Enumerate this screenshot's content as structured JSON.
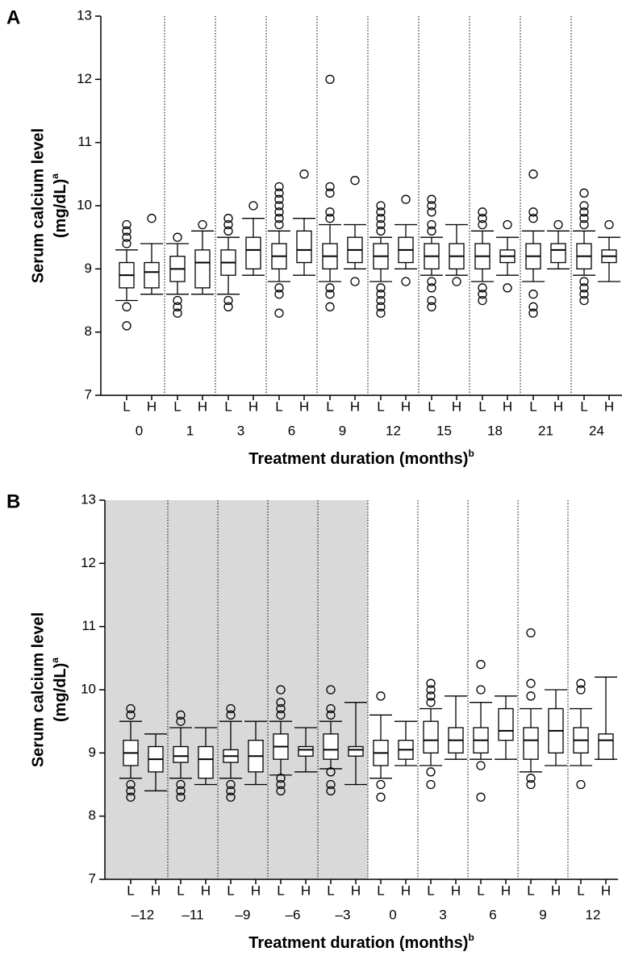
{
  "chart_data": [
    {
      "type": "box",
      "panel_label": "A",
      "y_label": [
        "Serum calcium level",
        "(mg/dL)"
      ],
      "y_label_superscript": "a",
      "x_label": "Treatment duration (months)",
      "x_label_superscript": "b",
      "ylim": [
        7,
        13
      ],
      "yticks": [
        7,
        8,
        9,
        10,
        11,
        12,
        13
      ],
      "categories": [
        "0",
        "1",
        "3",
        "6",
        "9",
        "12",
        "15",
        "18",
        "21",
        "24"
      ],
      "boxes": [
        [
          {
            "label": "L",
            "min": 8.5,
            "q1": 8.7,
            "median": 8.9,
            "q3": 9.1,
            "max": 9.3,
            "outliers": [
              9.4,
              9.5,
              9.6,
              9.7,
              8.4,
              8.1
            ]
          },
          {
            "label": "H",
            "min": 8.6,
            "q1": 8.7,
            "median": 8.95,
            "q3": 9.1,
            "max": 9.4,
            "outliers": [
              9.8
            ]
          }
        ],
        [
          {
            "label": "L",
            "min": 8.6,
            "q1": 8.8,
            "median": 9.0,
            "q3": 9.2,
            "max": 9.4,
            "outliers": [
              9.5,
              8.5,
              8.4,
              8.3
            ]
          },
          {
            "label": "H",
            "min": 8.6,
            "q1": 8.7,
            "median": 9.1,
            "q3": 9.3,
            "max": 9.6,
            "outliers": [
              9.7
            ]
          }
        ],
        [
          {
            "label": "L",
            "min": 8.6,
            "q1": 8.9,
            "median": 9.1,
            "q3": 9.3,
            "max": 9.5,
            "outliers": [
              9.6,
              9.7,
              9.8,
              8.5,
              8.4
            ]
          },
          {
            "label": "H",
            "min": 8.9,
            "q1": 9.0,
            "median": 9.3,
            "q3": 9.5,
            "max": 9.8,
            "outliers": [
              10.0
            ]
          }
        ],
        [
          {
            "label": "L",
            "min": 8.8,
            "q1": 9.0,
            "median": 9.2,
            "q3": 9.4,
            "max": 9.6,
            "outliers": [
              9.7,
              9.8,
              9.9,
              10.0,
              10.1,
              10.2,
              10.3,
              8.7,
              8.6,
              8.3
            ]
          },
          {
            "label": "H",
            "min": 8.9,
            "q1": 9.1,
            "median": 9.3,
            "q3": 9.6,
            "max": 9.8,
            "outliers": [
              10.5
            ]
          }
        ],
        [
          {
            "label": "L",
            "min": 8.8,
            "q1": 9.0,
            "median": 9.2,
            "q3": 9.4,
            "max": 9.7,
            "outliers": [
              9.8,
              9.9,
              10.2,
              10.3,
              12.0,
              8.7,
              8.6,
              8.4
            ]
          },
          {
            "label": "H",
            "min": 9.0,
            "q1": 9.1,
            "median": 9.3,
            "q3": 9.5,
            "max": 9.7,
            "outliers": [
              10.4,
              8.8
            ]
          }
        ],
        [
          {
            "label": "L",
            "min": 8.8,
            "q1": 9.0,
            "median": 9.2,
            "q3": 9.4,
            "max": 9.5,
            "outliers": [
              9.6,
              9.7,
              9.8,
              9.9,
              10.0,
              8.7,
              8.6,
              8.5,
              8.4,
              8.3
            ]
          },
          {
            "label": "H",
            "min": 9.0,
            "q1": 9.1,
            "median": 9.3,
            "q3": 9.5,
            "max": 9.7,
            "outliers": [
              10.1,
              8.8
            ]
          }
        ],
        [
          {
            "label": "L",
            "min": 8.9,
            "q1": 9.0,
            "median": 9.2,
            "q3": 9.4,
            "max": 9.5,
            "outliers": [
              9.6,
              9.7,
              9.9,
              10.0,
              10.1,
              8.8,
              8.7,
              8.5,
              8.4
            ]
          },
          {
            "label": "H",
            "min": 8.9,
            "q1": 9.0,
            "median": 9.2,
            "q3": 9.4,
            "max": 9.7,
            "outliers": [
              8.8
            ]
          }
        ],
        [
          {
            "label": "L",
            "min": 8.8,
            "q1": 9.0,
            "median": 9.2,
            "q3": 9.4,
            "max": 9.6,
            "outliers": [
              9.7,
              9.8,
              9.9,
              8.7,
              8.6,
              8.5
            ]
          },
          {
            "label": "H",
            "min": 8.9,
            "q1": 9.1,
            "median": 9.2,
            "q3": 9.3,
            "max": 9.5,
            "outliers": [
              9.7,
              8.7
            ]
          }
        ],
        [
          {
            "label": "L",
            "min": 8.8,
            "q1": 9.0,
            "median": 9.2,
            "q3": 9.4,
            "max": 9.6,
            "outliers": [
              9.8,
              9.9,
              10.5,
              8.6,
              8.4,
              8.3
            ]
          },
          {
            "label": "H",
            "min": 9.0,
            "q1": 9.1,
            "median": 9.3,
            "q3": 9.4,
            "max": 9.6,
            "outliers": [
              9.7
            ]
          }
        ],
        [
          {
            "label": "L",
            "min": 8.9,
            "q1": 9.0,
            "median": 9.2,
            "q3": 9.4,
            "max": 9.6,
            "outliers": [
              9.7,
              9.8,
              9.9,
              10.0,
              10.2,
              8.8,
              8.7,
              8.6,
              8.5
            ]
          },
          {
            "label": "H",
            "min": 8.8,
            "q1": 9.1,
            "median": 9.2,
            "q3": 9.3,
            "max": 9.5,
            "outliers": [
              9.7
            ]
          }
        ]
      ]
    },
    {
      "type": "box",
      "panel_label": "B",
      "y_label": [
        "Serum calcium level",
        "(mg/dL)"
      ],
      "y_label_superscript": "a",
      "x_label": "Treatment duration (months)",
      "x_label_superscript": "b",
      "ylim": [
        7,
        13
      ],
      "yticks": [
        7,
        8,
        9,
        10,
        11,
        12,
        13
      ],
      "categories": [
        "–12",
        "–11",
        "–9",
        "–6",
        "–3",
        "0",
        "3",
        "6",
        "9",
        "12"
      ],
      "shaded": [
        true,
        true,
        true,
        true,
        true,
        false,
        false,
        false,
        false,
        false
      ],
      "shade_color": "#d9d9d9",
      "boxes": [
        [
          {
            "label": "L",
            "min": 8.6,
            "q1": 8.8,
            "median": 9.0,
            "q3": 9.2,
            "max": 9.5,
            "outliers": [
              9.6,
              9.7,
              8.5,
              8.4,
              8.3
            ]
          },
          {
            "label": "H",
            "min": 8.4,
            "q1": 8.7,
            "median": 8.9,
            "q3": 9.1,
            "max": 9.3,
            "outliers": []
          }
        ],
        [
          {
            "label": "L",
            "min": 8.6,
            "q1": 8.85,
            "median": 8.95,
            "q3": 9.1,
            "max": 9.4,
            "outliers": [
              9.5,
              9.6,
              8.5,
              8.4,
              8.3
            ]
          },
          {
            "label": "H",
            "min": 8.5,
            "q1": 8.6,
            "median": 8.9,
            "q3": 9.1,
            "max": 9.4,
            "outliers": []
          }
        ],
        [
          {
            "label": "L",
            "min": 8.6,
            "q1": 8.85,
            "median": 8.95,
            "q3": 9.05,
            "max": 9.5,
            "outliers": [
              9.6,
              9.7,
              8.5,
              8.4,
              8.3
            ]
          },
          {
            "label": "H",
            "min": 8.5,
            "q1": 8.7,
            "median": 8.95,
            "q3": 9.2,
            "max": 9.5,
            "outliers": []
          }
        ],
        [
          {
            "label": "L",
            "min": 8.65,
            "q1": 8.9,
            "median": 9.1,
            "q3": 9.3,
            "max": 9.5,
            "outliers": [
              9.6,
              9.7,
              9.8,
              10.0,
              8.6,
              8.5,
              8.4
            ]
          },
          {
            "label": "H",
            "min": 8.7,
            "q1": 8.95,
            "median": 9.05,
            "q3": 9.1,
            "max": 9.4,
            "outliers": []
          }
        ],
        [
          {
            "label": "L",
            "min": 8.75,
            "q1": 8.9,
            "median": 9.05,
            "q3": 9.3,
            "max": 9.5,
            "outliers": [
              9.6,
              9.7,
              10.0,
              8.7,
              8.5,
              8.4
            ]
          },
          {
            "label": "H",
            "min": 8.5,
            "q1": 8.95,
            "median": 9.05,
            "q3": 9.1,
            "max": 9.8,
            "outliers": []
          }
        ],
        [
          {
            "label": "L",
            "min": 8.6,
            "q1": 8.8,
            "median": 9.0,
            "q3": 9.2,
            "max": 9.6,
            "outliers": [
              9.9,
              8.5,
              8.3
            ]
          },
          {
            "label": "H",
            "min": 8.8,
            "q1": 8.9,
            "median": 9.05,
            "q3": 9.2,
            "max": 9.5,
            "outliers": []
          }
        ],
        [
          {
            "label": "L",
            "min": 8.8,
            "q1": 9.0,
            "median": 9.2,
            "q3": 9.5,
            "max": 9.7,
            "outliers": [
              9.8,
              9.9,
              10.0,
              10.1,
              8.7,
              8.5
            ]
          },
          {
            "label": "H",
            "min": 8.9,
            "q1": 9.0,
            "median": 9.2,
            "q3": 9.4,
            "max": 9.9,
            "outliers": []
          }
        ],
        [
          {
            "label": "L",
            "min": 8.9,
            "q1": 9.0,
            "median": 9.2,
            "q3": 9.4,
            "max": 9.8,
            "outliers": [
              10.0,
              10.4,
              8.8,
              8.3
            ]
          },
          {
            "label": "H",
            "min": 8.9,
            "q1": 9.2,
            "median": 9.35,
            "q3": 9.7,
            "max": 9.9,
            "outliers": []
          }
        ],
        [
          {
            "label": "L",
            "min": 8.7,
            "q1": 8.9,
            "median": 9.2,
            "q3": 9.4,
            "max": 9.7,
            "outliers": [
              9.9,
              10.1,
              10.9,
              8.6,
              8.5
            ]
          },
          {
            "label": "H",
            "min": 8.8,
            "q1": 9.0,
            "median": 9.35,
            "q3": 9.7,
            "max": 10.0,
            "outliers": []
          }
        ],
        [
          {
            "label": "L",
            "min": 8.8,
            "q1": 9.0,
            "median": 9.2,
            "q3": 9.4,
            "max": 9.7,
            "outliers": [
              10.0,
              10.1,
              8.5
            ]
          },
          {
            "label": "H",
            "min": 8.9,
            "q1": 8.9,
            "median": 9.2,
            "q3": 9.3,
            "max": 10.2,
            "outliers": []
          }
        ]
      ]
    }
  ]
}
